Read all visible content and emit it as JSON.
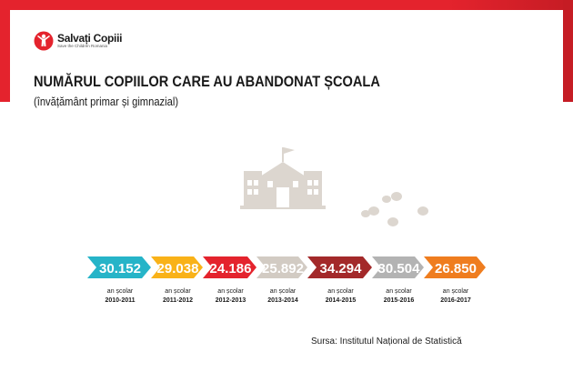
{
  "brand": {
    "name": "Salvați Copiii",
    "tagline": "Save the Children Romania",
    "color": "#e4232d"
  },
  "header": {
    "title": "NUMĂRUL COPIILOR CARE AU ABANDONAT ȘCOALA",
    "subtitle": "(învățământ primar și gimnazial)"
  },
  "chart_data": {
    "type": "table",
    "title": "NUMĂRUL COPIILOR CARE AU ABANDONAT ȘCOALA",
    "subtitle": "(învățământ primar și gimnazial)",
    "category_label": "an școlar",
    "categories": [
      "2010-2011",
      "2011-2012",
      "2012-2013",
      "2013-2014",
      "2014-2015",
      "2015-2016",
      "2016-2017"
    ],
    "values": [
      30152,
      29038,
      24186,
      25892,
      34294,
      30504,
      26850
    ],
    "value_labels": [
      "30.152",
      "29.038",
      "24.186",
      "25.892",
      "34.294",
      "30.504",
      "26.850"
    ],
    "colors": [
      "#26b4c8",
      "#f9b218",
      "#e4232d",
      "#d2cbc3",
      "#a3292a",
      "#b3b3b3",
      "#ef7d1f"
    ]
  },
  "source": "Sursa: Institutul Național de Statistică",
  "illustration": {
    "icon": "school-building-icon",
    "secondary_icon": "footprints-icon",
    "color": "#dcd6cf"
  }
}
